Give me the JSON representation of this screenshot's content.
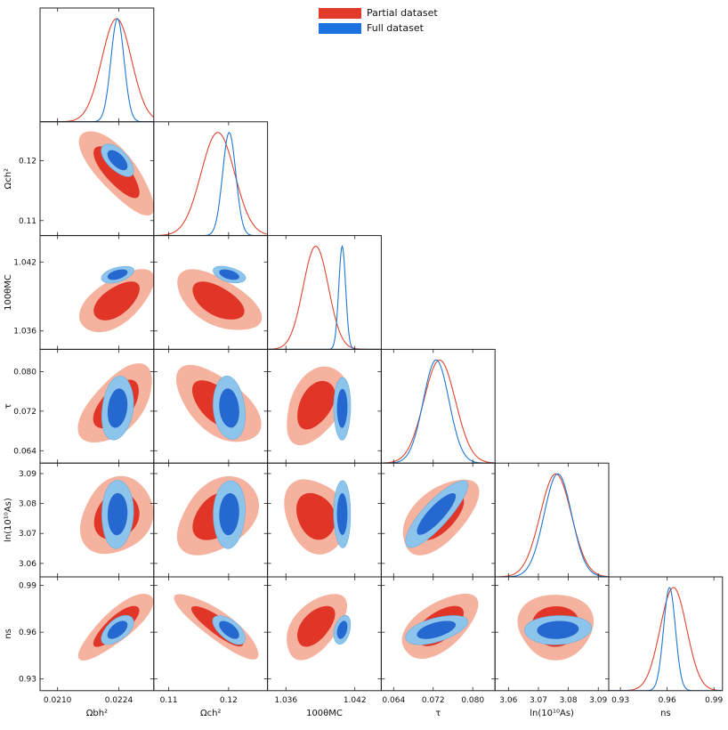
{
  "chart_data": {
    "type": "triangle-corner",
    "colors": {
      "partial_line": "#e0442e",
      "partial_inner": "#e03527",
      "partial_outer": "#f5b29e",
      "full_line": "#1f77d4",
      "full_inner": "#2568d0",
      "full_outer": "#8cc4ec"
    },
    "legend": [
      {
        "label": "Partial dataset",
        "color": "#e23a2a"
      },
      {
        "label": "Full dataset",
        "color": "#1a73e0"
      }
    ],
    "parameters": [
      {
        "key": "ombh2",
        "label": "Ωbh²",
        "range": [
          0.0206,
          0.0232
        ],
        "ticks": [
          "0.0210",
          "0.0224"
        ],
        "tick_values": [
          0.021,
          0.0224
        ],
        "partial": {
          "mean": 0.02235,
          "sd": 0.00034
        },
        "full": {
          "mean": 0.02237,
          "sd": 0.00015
        }
      },
      {
        "key": "omch2",
        "label": "Ωch²",
        "range": [
          0.1075,
          0.1265
        ],
        "ticks": [
          "0.11",
          "0.12"
        ],
        "tick_values": [
          0.11,
          0.12
        ],
        "partial": {
          "mean": 0.1182,
          "sd": 0.0028
        },
        "full": {
          "mean": 0.1201,
          "sd": 0.0011
        }
      },
      {
        "key": "theta",
        "label": "100θMC",
        "range": [
          1.0344,
          1.0443
        ],
        "ticks": [
          "1.036",
          "1.042"
        ],
        "tick_values": [
          1.036,
          1.042
        ],
        "partial": {
          "mean": 1.0386,
          "sd": 0.0011
        },
        "full": {
          "mean": 1.0409,
          "sd": 0.0003
        }
      },
      {
        "key": "tau",
        "label": "τ",
        "range": [
          0.0615,
          0.0845
        ],
        "ticks": [
          "0.064",
          "0.072",
          "0.080"
        ],
        "tick_values": [
          0.064,
          0.072,
          0.08
        ],
        "partial": {
          "mean": 0.0733,
          "sd": 0.0032
        },
        "full": {
          "mean": 0.0726,
          "sd": 0.0026
        }
      },
      {
        "key": "logA",
        "label": "ln(10¹⁰As)",
        "range": [
          3.0555,
          3.0935
        ],
        "ticks": [
          "3.06",
          "3.07",
          "3.08",
          "3.09"
        ],
        "tick_values": [
          3.06,
          3.07,
          3.08,
          3.09
        ],
        "partial": {
          "mean": 3.0758,
          "sd": 0.0052
        },
        "full": {
          "mean": 3.0765,
          "sd": 0.0046
        }
      },
      {
        "key": "ns",
        "label": "ns",
        "range": [
          0.9225,
          0.9955
        ],
        "ticks": [
          "0.93",
          "0.96",
          "0.99"
        ],
        "tick_values": [
          0.93,
          0.96,
          0.99
        ],
        "partial": {
          "mean": 0.964,
          "sd": 0.0085
        },
        "full": {
          "mean": 0.9615,
          "sd": 0.0038
        }
      }
    ],
    "correlations_partial": [
      [
        1,
        -0.75,
        0.55,
        0.55,
        0.15,
        0.8
      ],
      [
        -0.75,
        1,
        -0.55,
        -0.55,
        0.35,
        -0.85
      ],
      [
        0.55,
        -0.55,
        1,
        0.45,
        -0.2,
        0.55
      ],
      [
        0.55,
        -0.55,
        0.45,
        1,
        0.6,
        0.6
      ],
      [
        0.15,
        0.35,
        -0.2,
        0.6,
        1,
        0.05
      ],
      [
        0.8,
        -0.85,
        0.55,
        0.6,
        0.05,
        1
      ]
    ],
    "correlations_full": [
      [
        1,
        -0.6,
        0.45,
        0.2,
        0.05,
        0.55
      ],
      [
        -0.6,
        1,
        -0.45,
        -0.15,
        0.1,
        -0.6
      ],
      [
        0.45,
        -0.45,
        1,
        0.05,
        0.0,
        0.35
      ],
      [
        0.2,
        -0.15,
        0.05,
        1,
        0.85,
        0.55
      ],
      [
        0.05,
        0.1,
        0.0,
        0.85,
        1,
        0.1
      ],
      [
        0.55,
        -0.6,
        0.35,
        0.55,
        0.1,
        1
      ]
    ]
  }
}
